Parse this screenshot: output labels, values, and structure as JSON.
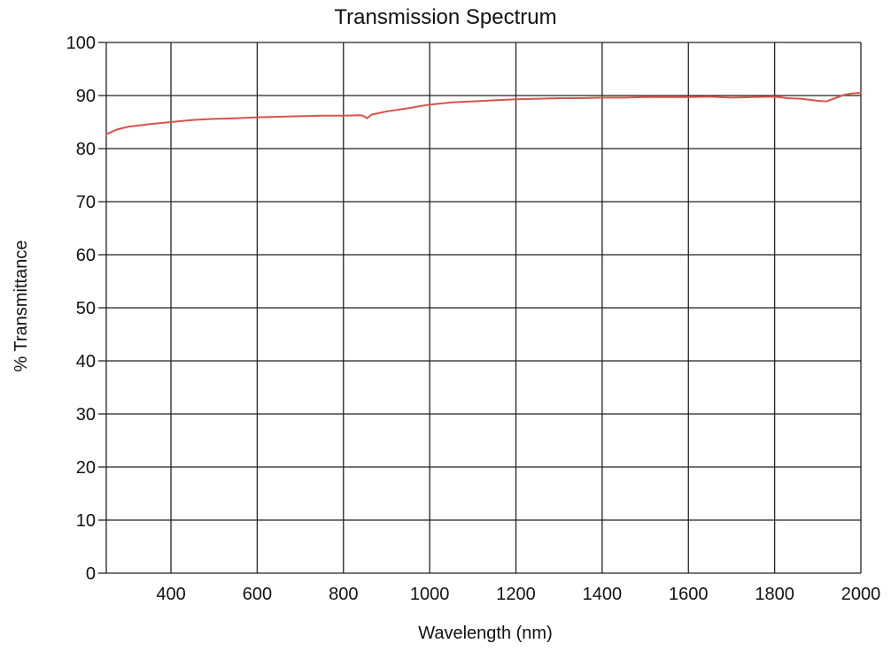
{
  "chart_data": {
    "type": "line",
    "title": "Transmission Spectrum",
    "xlabel": "Wavelength (nm)",
    "ylabel": "% Transmittance",
    "xlim": [
      250,
      2000
    ],
    "ylim": [
      0,
      100
    ],
    "x_ticks": [
      400,
      600,
      800,
      1000,
      1200,
      1400,
      1600,
      1800,
      2000
    ],
    "y_ticks": [
      0,
      10,
      20,
      30,
      40,
      50,
      60,
      70,
      80,
      90,
      100
    ],
    "x_grid": [
      250,
      400,
      600,
      800,
      1000,
      1200,
      1400,
      1600,
      1800,
      2000
    ],
    "grid": true,
    "legend": "none",
    "line_color": "#d9534a",
    "series": [
      {
        "x": [
          250,
          275,
          300,
          350,
          400,
          450,
          500,
          550,
          600,
          650,
          700,
          750,
          800,
          840,
          850,
          855,
          865,
          900,
          950,
          1000,
          1050,
          1100,
          1150,
          1200,
          1250,
          1300,
          1350,
          1400,
          1450,
          1500,
          1550,
          1600,
          1650,
          1700,
          1750,
          1800,
          1830,
          1860,
          1880,
          1900,
          1920,
          1940,
          1960,
          1980,
          2000
        ],
        "y": [
          82.7,
          83.6,
          84.1,
          84.6,
          85.0,
          85.4,
          85.6,
          85.7,
          85.9,
          86.0,
          86.1,
          86.2,
          86.2,
          86.3,
          86.0,
          85.7,
          86.4,
          87.0,
          87.6,
          88.3,
          88.7,
          88.9,
          89.1,
          89.3,
          89.4,
          89.5,
          89.5,
          89.6,
          89.6,
          89.7,
          89.7,
          89.7,
          89.8,
          89.6,
          89.7,
          89.8,
          89.5,
          89.4,
          89.2,
          89.0,
          88.9,
          89.5,
          90.1,
          90.4,
          90.5
        ]
      }
    ]
  }
}
